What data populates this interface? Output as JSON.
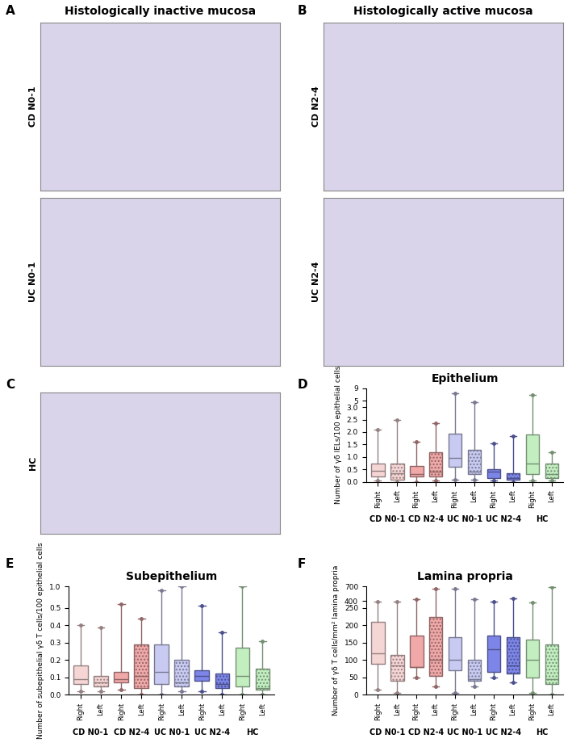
{
  "image_panels": [
    {
      "panel": "A",
      "title": "Histologically inactive mucosa",
      "images": [
        "CD N0-1",
        "UC N0-1"
      ]
    },
    {
      "panel": "B",
      "title": "Histologically active mucosa",
      "images": [
        "CD N2-4",
        "UC N2-4"
      ]
    },
    {
      "panel": "C",
      "images": [
        "HC"
      ]
    }
  ],
  "chart_data": [
    {
      "panel": "D",
      "type": "box",
      "title": "Epithelium",
      "y_label": "Number of γδ IELs/100 epithelial cells",
      "categories": [
        "Right",
        "Left",
        "Right",
        "Left",
        "Right",
        "Left",
        "Right",
        "Left",
        "Right",
        "Left"
      ],
      "groups": [
        "CD N0-1",
        "CD N2-4",
        "UC N0-1",
        "UC N2-4",
        "HC"
      ],
      "colors": [
        "#f6d5d5",
        "#f6d5d5",
        "#f0a8a8",
        "#f0a8a8",
        "#c8caf2",
        "#c8caf2",
        "#7d86e8",
        "#7d86e8",
        "#c2eec0",
        "#c2eec0"
      ],
      "boxes": [
        {
          "min": 0.05,
          "q1": 0.2,
          "median": 0.45,
          "q3": 0.75,
          "max": 2.1
        },
        {
          "min": 0.0,
          "q1": 0.1,
          "median": 0.35,
          "q3": 0.75,
          "max": 2.5
        },
        {
          "min": 0.0,
          "q1": 0.2,
          "median": 0.3,
          "q3": 0.65,
          "max": 1.6
        },
        {
          "min": 0.05,
          "q1": 0.2,
          "median": 0.4,
          "q3": 1.2,
          "max": 2.35
        },
        {
          "min": 0.1,
          "q1": 0.6,
          "median": 0.95,
          "q3": 1.95,
          "max": 7.5
        },
        {
          "min": 0.1,
          "q1": 0.3,
          "median": 0.4,
          "q3": 1.3,
          "max": 4.5
        },
        {
          "min": 0.05,
          "q1": 0.15,
          "median": 0.4,
          "q3": 0.5,
          "max": 1.55
        },
        {
          "min": 0.0,
          "q1": 0.1,
          "median": 0.15,
          "q3": 0.35,
          "max": 1.85
        },
        {
          "min": 0.05,
          "q1": 0.3,
          "median": 0.75,
          "q3": 1.9,
          "max": 7.0
        },
        {
          "min": 0.05,
          "q1": 0.15,
          "median": 0.3,
          "q3": 0.75,
          "max": 1.2
        }
      ],
      "ylim": [
        0,
        9
      ],
      "y_break": 3,
      "yticks": [
        {
          "value": 0,
          "label": "0.0"
        },
        0.5,
        {
          "value": 1,
          "label": "1.0"
        },
        1.5,
        {
          "value": 2,
          "label": "2.0"
        },
        2.5,
        {
          "value": 3,
          "label": "3.0"
        },
        5,
        9
      ]
    },
    {
      "panel": "E",
      "type": "box",
      "title": "Subepithelium",
      "y_label": "Number of subepithelial γδ T cells/100 epithelial cells",
      "categories": [
        "Right",
        "Left",
        "Right",
        "Left",
        "Right",
        "Left",
        "Right",
        "Left",
        "Right",
        "Left"
      ],
      "groups": [
        "CD N0-1",
        "CD N2-4",
        "UC N0-1",
        "UC N2-4",
        "HC"
      ],
      "colors": [
        "#f6d5d5",
        "#f6d5d5",
        "#f0a8a8",
        "#f0a8a8",
        "#c8caf2",
        "#c8caf2",
        "#7d86e8",
        "#7d86e8",
        "#c2eec0",
        "#c2eec0"
      ],
      "boxes": [
        {
          "min": 0.02,
          "q1": 0.06,
          "median": 0.09,
          "q3": 0.17,
          "max": 0.4
        },
        {
          "min": 0.02,
          "q1": 0.05,
          "median": 0.07,
          "q3": 0.11,
          "max": 0.39
        },
        {
          "min": 0.03,
          "q1": 0.07,
          "median": 0.09,
          "q3": 0.13,
          "max": 0.6
        },
        {
          "min": 0.0,
          "q1": 0.04,
          "median": 0.11,
          "q3": 0.29,
          "max": 0.44
        },
        {
          "min": 0.0,
          "q1": 0.06,
          "median": 0.13,
          "q3": 0.29,
          "max": 0.9
        },
        {
          "min": 0.02,
          "q1": 0.05,
          "median": 0.07,
          "q3": 0.2,
          "max": 1.0
        },
        {
          "min": 0.02,
          "q1": 0.08,
          "median": 0.11,
          "q3": 0.14,
          "max": 0.55
        },
        {
          "min": 0.0,
          "q1": 0.04,
          "median": 0.06,
          "q3": 0.12,
          "max": 0.36
        },
        {
          "min": 0.0,
          "q1": 0.05,
          "median": 0.11,
          "q3": 0.27,
          "max": 1.0
        },
        {
          "min": 0.0,
          "q1": 0.03,
          "median": 0.04,
          "q3": 0.15,
          "max": 0.31
        }
      ],
      "ylim": [
        0,
        1.0
      ],
      "y_break": 0.5,
      "yticks": [
        {
          "value": 0,
          "label": "0.0"
        },
        0.1,
        0.2,
        0.3,
        0.4,
        0.5,
        {
          "value": 1,
          "label": "1.0"
        }
      ]
    },
    {
      "panel": "F",
      "type": "box",
      "title": "Lamina propria",
      "y_label": "Number of γδ T cells/mm² lamina propria",
      "categories": [
        "Right",
        "Left",
        "Right",
        "Left",
        "Right",
        "Left",
        "Right",
        "Left",
        "Right",
        "Left"
      ],
      "groups": [
        "CD N0-1",
        "CD N2-4",
        "UC N0-1",
        "UC N2-4",
        "HC"
      ],
      "colors": [
        "#f6d5d5",
        "#f6d5d5",
        "#f0a8a8",
        "#f0a8a8",
        "#c8caf2",
        "#c8caf2",
        "#7d86e8",
        "#7d86e8",
        "#c2eec0",
        "#c2eec0"
      ],
      "boxes": [
        {
          "min": 15,
          "q1": 90,
          "median": 120,
          "q3": 210,
          "max": 390
        },
        {
          "min": 5,
          "q1": 40,
          "median": 85,
          "q3": 115,
          "max": 380
        },
        {
          "min": 50,
          "q1": 80,
          "median": 80,
          "q3": 170,
          "max": 440
        },
        {
          "min": 25,
          "q1": 55,
          "median": 100,
          "q3": 225,
          "max": 660
        },
        {
          "min": 5,
          "q1": 70,
          "median": 100,
          "q3": 165,
          "max": 660
        },
        {
          "min": 25,
          "q1": 40,
          "median": 45,
          "q3": 100,
          "max": 440
        },
        {
          "min": 50,
          "q1": 65,
          "median": 130,
          "q3": 170,
          "max": 380
        },
        {
          "min": 35,
          "q1": 60,
          "median": 85,
          "q3": 165,
          "max": 450
        },
        {
          "min": 5,
          "q1": 50,
          "median": 100,
          "q3": 160,
          "max": 370
        },
        {
          "min": 0,
          "q1": 30,
          "median": 45,
          "q3": 145,
          "max": 690
        }
      ],
      "ylim": [
        0,
        700
      ],
      "y_break": 250,
      "yticks": [
        0,
        50,
        100,
        150,
        200,
        250,
        400,
        700
      ]
    }
  ]
}
